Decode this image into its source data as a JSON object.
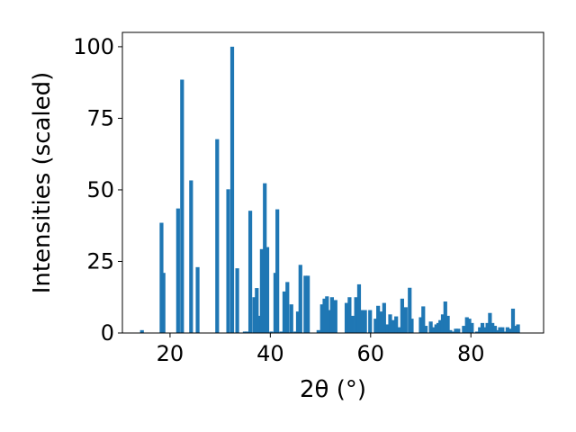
{
  "chart_data": {
    "type": "bar",
    "xlabel": "2θ (°)",
    "ylabel": "Intensities (scaled)",
    "xlim": [
      10.5,
      94.5
    ],
    "ylim": [
      0,
      105
    ],
    "x_ticks": [
      "20",
      "40",
      "60",
      "80"
    ],
    "y_ticks": [
      "0",
      "25",
      "50",
      "75",
      "100"
    ],
    "bar_color": "#1f77b4",
    "grid": false,
    "points": [
      [
        14.4,
        1.0
      ],
      [
        18.3,
        38.5
      ],
      [
        18.7,
        21.0
      ],
      [
        21.6,
        43.5
      ],
      [
        22.4,
        88.5
      ],
      [
        24.2,
        53.3
      ],
      [
        25.5,
        23.0
      ],
      [
        29.4,
        67.7
      ],
      [
        31.6,
        50.2
      ],
      [
        32.4,
        100.0
      ],
      [
        33.4,
        22.6
      ],
      [
        34.9,
        0.5
      ],
      [
        35.3,
        0.5
      ],
      [
        36.0,
        42.7
      ],
      [
        36.8,
        12.5
      ],
      [
        37.3,
        15.7
      ],
      [
        37.8,
        6.0
      ],
      [
        38.3,
        29.3
      ],
      [
        38.9,
        52.3
      ],
      [
        39.4,
        30.0
      ],
      [
        40.2,
        0.5
      ],
      [
        41.0,
        21.0
      ],
      [
        41.4,
        43.2
      ],
      [
        42.2,
        0.5
      ],
      [
        42.8,
        14.5
      ],
      [
        43.4,
        17.8
      ],
      [
        44.2,
        10.0
      ],
      [
        45.0,
        0.5
      ],
      [
        45.5,
        7.5
      ],
      [
        46.0,
        23.8
      ],
      [
        47.0,
        20.0
      ],
      [
        47.5,
        20.0
      ],
      [
        49.6,
        1.0
      ],
      [
        50.3,
        10.0
      ],
      [
        50.8,
        12.0
      ],
      [
        51.3,
        12.8
      ],
      [
        51.8,
        8.0
      ],
      [
        52.3,
        12.5
      ],
      [
        53.0,
        11.5
      ],
      [
        55.2,
        10.5
      ],
      [
        55.8,
        12.5
      ],
      [
        56.4,
        6.0
      ],
      [
        57.1,
        12.5
      ],
      [
        57.7,
        17.0
      ],
      [
        58.3,
        8.0
      ],
      [
        58.9,
        8.0
      ],
      [
        59.9,
        8.0
      ],
      [
        61.0,
        5.0
      ],
      [
        61.5,
        9.5
      ],
      [
        62.0,
        7.5
      ],
      [
        62.7,
        10.5
      ],
      [
        63.3,
        3.0
      ],
      [
        63.9,
        6.5
      ],
      [
        64.5,
        4.5
      ],
      [
        65.1,
        5.8
      ],
      [
        65.7,
        2.0
      ],
      [
        66.3,
        12.0
      ],
      [
        67.0,
        9.0
      ],
      [
        67.8,
        15.8
      ],
      [
        68.2,
        5.0
      ],
      [
        70.0,
        5.5
      ],
      [
        70.5,
        9.3
      ],
      [
        71.0,
        2.5
      ],
      [
        72.0,
        4.0
      ],
      [
        72.6,
        2.0
      ],
      [
        73.1,
        3.0
      ],
      [
        73.5,
        3.5
      ],
      [
        73.9,
        4.5
      ],
      [
        74.4,
        6.5
      ],
      [
        74.9,
        11.0
      ],
      [
        75.4,
        6.0
      ],
      [
        75.9,
        1.0
      ],
      [
        76.4,
        0.5
      ],
      [
        77.0,
        1.5
      ],
      [
        77.5,
        1.5
      ],
      [
        78.6,
        2.5
      ],
      [
        79.2,
        5.5
      ],
      [
        79.7,
        5.0
      ],
      [
        80.2,
        3.5
      ],
      [
        81.2,
        0.5
      ],
      [
        81.8,
        2.0
      ],
      [
        82.3,
        3.5
      ],
      [
        82.8,
        2.0
      ],
      [
        83.3,
        3.5
      ],
      [
        83.8,
        7.0
      ],
      [
        84.3,
        3.5
      ],
      [
        84.8,
        2.5
      ],
      [
        85.3,
        1.0
      ],
      [
        85.8,
        2.0
      ],
      [
        86.3,
        2.0
      ],
      [
        86.8,
        0.5
      ],
      [
        87.3,
        2.0
      ],
      [
        87.8,
        1.5
      ],
      [
        88.4,
        8.5
      ],
      [
        88.9,
        2.5
      ],
      [
        89.4,
        3.0
      ]
    ]
  }
}
